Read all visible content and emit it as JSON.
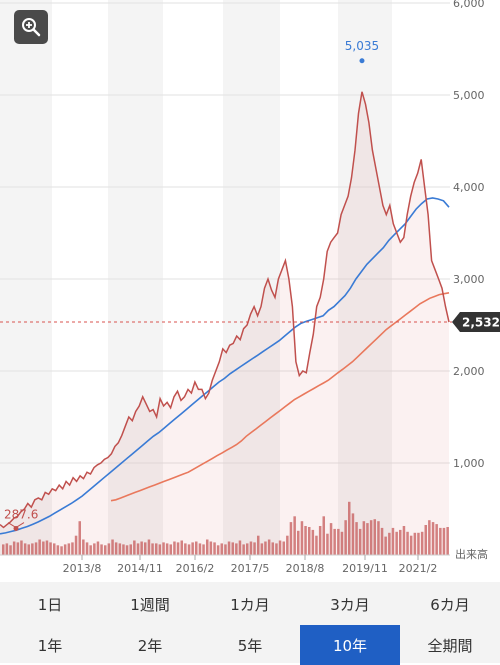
{
  "zoom_icon": "zoom-in-icon",
  "chart_data": {
    "type": "line",
    "ylim": [
      0,
      6000
    ],
    "y_ticks": [
      "1,000",
      "2,000",
      "3,000",
      "4,000",
      "5,000",
      "6,000"
    ],
    "x_tick_labels": [
      "2013/8",
      "2014/11",
      "2016/2",
      "2017/5",
      "2018/8",
      "2019/11",
      "2021/2"
    ],
    "volume_label": "出来高",
    "grid": true,
    "current_price": {
      "value": 2532,
      "label": "2,532"
    },
    "max_annotation": {
      "value": 5035,
      "label": "5,035"
    },
    "min_annotation": {
      "value": 287.6,
      "label": "287.6"
    },
    "series": [
      {
        "color": "#c0504d",
        "values": [
          330,
          300,
          330,
          360,
          400,
          420,
          470,
          500,
          560,
          520,
          600,
          620,
          600,
          680,
          660,
          720,
          700,
          760,
          720,
          800,
          760,
          840,
          800,
          860,
          830,
          900,
          880,
          950,
          980,
          1000,
          1040,
          1060,
          1100,
          1180,
          1220,
          1300,
          1400,
          1500,
          1460,
          1560,
          1620,
          1720,
          1640,
          1560,
          1580,
          1500,
          1700,
          1620,
          1660,
          1600,
          1720,
          1780,
          1680,
          1720,
          1800,
          1760,
          1880,
          1800,
          1800,
          1700,
          1760,
          1900,
          2000,
          2100,
          2240,
          2200,
          2280,
          2300,
          2380,
          2340,
          2460,
          2500,
          2620,
          2700,
          2600,
          2700,
          2900,
          3000,
          2880,
          2800,
          3000,
          3100,
          3200,
          3000,
          2700,
          2100,
          1950,
          2000,
          1980,
          2200,
          2400,
          2700,
          2800,
          3000,
          3300,
          3400,
          3450,
          3500,
          3700,
          3800,
          3900,
          4100,
          4400,
          4800,
          5035,
          4900,
          4700,
          4400,
          4200,
          4000,
          3800,
          3700,
          3800,
          3600,
          3500,
          3400,
          3450,
          3700,
          3900,
          4050,
          4150,
          4300,
          4000,
          3700,
          3200,
          3100,
          3000,
          2900,
          2700,
          2532
        ]
      },
      {
        "color": "#3a7bd5",
        "values": [
          230,
          240,
          255,
          270,
          290,
          310,
          335,
          360,
          390,
          420,
          455,
          490,
          525,
          560,
          600,
          640,
          690,
          740,
          790,
          840,
          890,
          940,
          990,
          1040,
          1090,
          1140,
          1190,
          1240,
          1290,
          1330,
          1380,
          1430,
          1480,
          1530,
          1580,
          1630,
          1680,
          1730,
          1780,
          1830,
          1880,
          1920,
          1970,
          2010,
          2050,
          2090,
          2130,
          2170,
          2210,
          2250,
          2290,
          2330,
          2380,
          2430,
          2480,
          2520,
          2540,
          2560,
          2580,
          2600,
          2660,
          2700,
          2760,
          2820,
          2900,
          3000,
          3080,
          3160,
          3220,
          3280,
          3340,
          3420,
          3480,
          3540,
          3600,
          3680,
          3760,
          3820,
          3870,
          3880,
          3870,
          3850,
          3780
        ]
      },
      {
        "color": "#e9785c",
        "values": [
          590,
          600,
          620,
          640,
          660,
          680,
          700,
          720,
          740,
          760,
          780,
          800,
          820,
          840,
          860,
          880,
          900,
          930,
          960,
          990,
          1020,
          1050,
          1080,
          1110,
          1140,
          1170,
          1200,
          1240,
          1290,
          1330,
          1370,
          1410,
          1450,
          1490,
          1530,
          1570,
          1610,
          1650,
          1690,
          1720,
          1750,
          1780,
          1810,
          1840,
          1870,
          1900,
          1940,
          1980,
          2020,
          2060,
          2100,
          2150,
          2200,
          2250,
          2300,
          2350,
          2400,
          2450,
          2490,
          2530,
          2570,
          2610,
          2650,
          2690,
          2730,
          2760,
          2790,
          2810,
          2830,
          2840,
          2850
        ]
      },
      {
        "color": "#c55a5a",
        "values": [
          11,
          12,
          10,
          14,
          13,
          15,
          12,
          11,
          12,
          13,
          16,
          14,
          15,
          13,
          12,
          10,
          9,
          11,
          12,
          13,
          20,
          35,
          16,
          13,
          10,
          12,
          14,
          11,
          10,
          12,
          16,
          13,
          12,
          11,
          10,
          11,
          15,
          12,
          14,
          13,
          16,
          12,
          12,
          11,
          13,
          12,
          11,
          14,
          13,
          15,
          12,
          11,
          13,
          14,
          12,
          11,
          16,
          14,
          13,
          10,
          12,
          11,
          14,
          13,
          12,
          15,
          11,
          12,
          14,
          13,
          20,
          12,
          14,
          16,
          13,
          12,
          15,
          14,
          20,
          34,
          40,
          25,
          35,
          30,
          29,
          26,
          20,
          30,
          40,
          22,
          33,
          27,
          27,
          24,
          36,
          55,
          43,
          34,
          27,
          35,
          33,
          36,
          37,
          35,
          28,
          19,
          23,
          28,
          24,
          26,
          30,
          24,
          20,
          23,
          23,
          24,
          31,
          36,
          34,
          32,
          28,
          28,
          29
        ]
      }
    ]
  },
  "periods": {
    "row1": [
      "1日",
      "1週間",
      "1カ月",
      "3カ月",
      "6カ月"
    ],
    "row2": [
      "1年",
      "2年",
      "5年",
      "10年",
      "全期間"
    ],
    "active": "10年"
  }
}
